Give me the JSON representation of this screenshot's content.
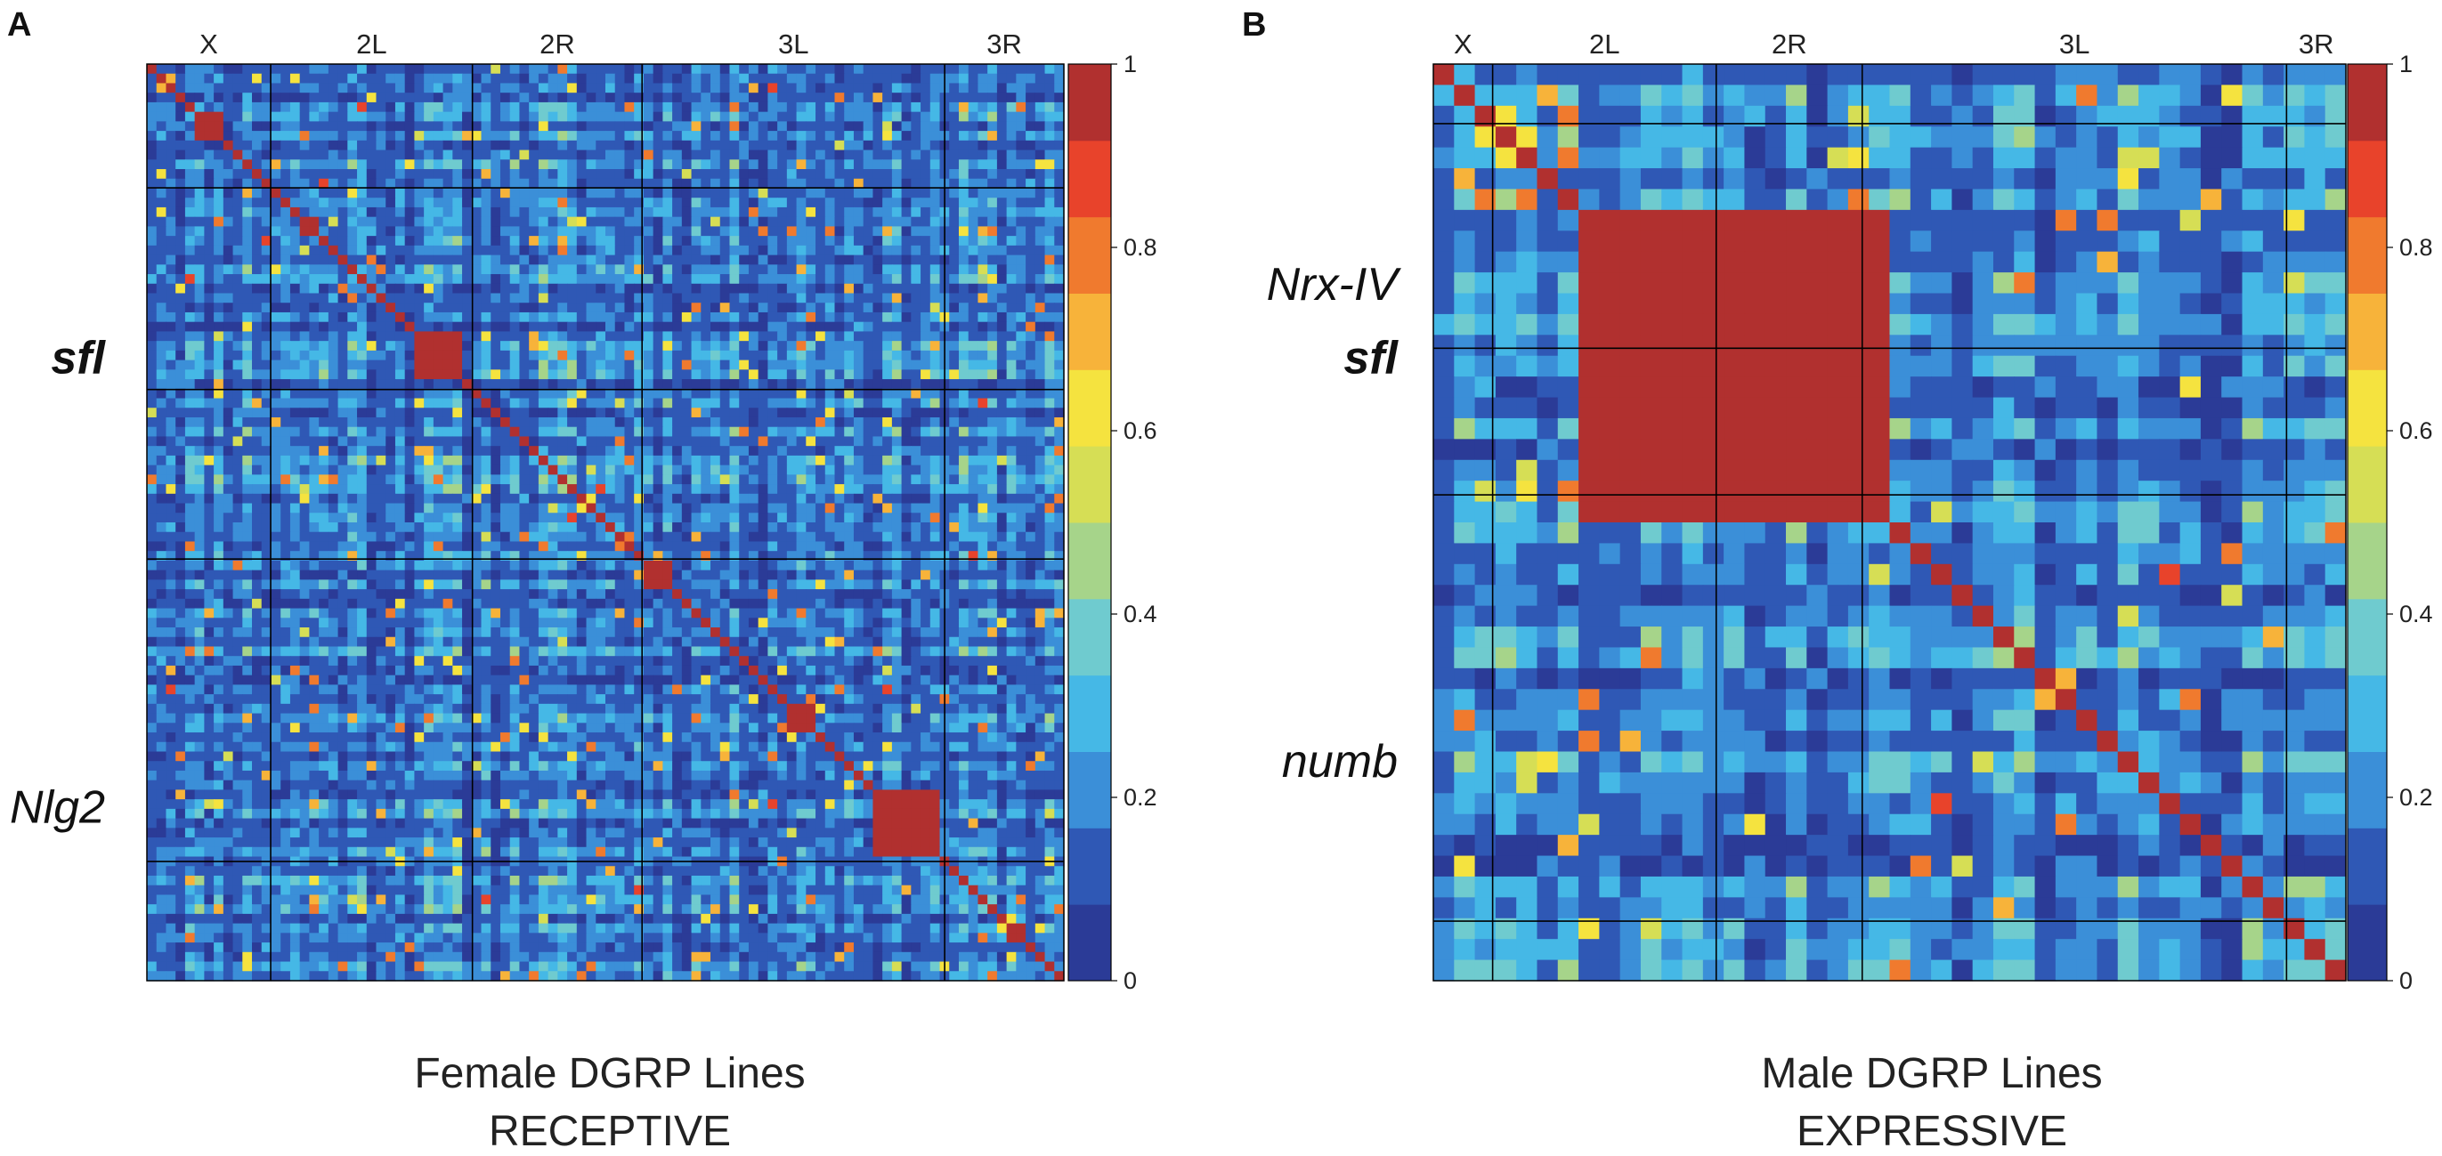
{
  "chart_data": [
    {
      "panel": "A",
      "type": "heatmap",
      "title": "Female DGRP Lines",
      "subtitle": "RECEPTIVE",
      "chromosomes": [
        "X",
        "2L",
        "2R",
        "3L",
        "3R"
      ],
      "chromosome_fractions": [
        0.135,
        0.22,
        0.185,
        0.33,
        0.13
      ],
      "labeled_genes": [
        {
          "label": "sfl",
          "bold": true,
          "position": 0.32
        },
        {
          "label": "Nlg2",
          "bold": false,
          "position": 0.81
        }
      ],
      "grid": 96,
      "diagonal_blocks": [
        {
          "start": 0.06,
          "size": 0.03
        },
        {
          "start": 0.17,
          "size": 0.022
        },
        {
          "start": 0.3,
          "size": 0.055
        },
        {
          "start": 0.55,
          "size": 0.032
        },
        {
          "start": 0.7,
          "size": 0.03
        },
        {
          "start": 0.8,
          "size": 0.07
        },
        {
          "start": 0.94,
          "size": 0.022
        }
      ],
      "colorbar": {
        "min": 0,
        "max": 1,
        "ticks": [
          0,
          0.2,
          0.4,
          0.6,
          0.8,
          1
        ],
        "tick_labels": [
          "0",
          "0.2",
          "0.4",
          "0.6",
          "0.8",
          "1"
        ]
      },
      "colormap": [
        "#2b3b97",
        "#2f58b5",
        "#3b8fd8",
        "#45b8e6",
        "#6fcbcf",
        "#a6d48a",
        "#d6de55",
        "#f5e33f",
        "#f7b33a",
        "#f07a2e",
        "#e8432b",
        "#b1302f"
      ]
    },
    {
      "panel": "B",
      "type": "heatmap",
      "title": "Male DGRP Lines",
      "subtitle": "EXPRESSIVE",
      "chromosomes": [
        "X",
        "2L",
        "2R",
        "3L",
        "3R"
      ],
      "chromosome_fractions": [
        0.065,
        0.245,
        0.16,
        0.465,
        0.065
      ],
      "labeled_genes": [
        {
          "label": "Nrx-IV",
          "bold": false,
          "position": 0.24
        },
        {
          "label": "sfl",
          "bold": true,
          "position": 0.32
        },
        {
          "label": "numb",
          "bold": false,
          "position": 0.76
        }
      ],
      "grid": 44,
      "big_block": {
        "start": 0.16,
        "end": 0.5
      },
      "colorbar": {
        "min": 0,
        "max": 1,
        "ticks": [
          0,
          0.2,
          0.4,
          0.6,
          0.8,
          1
        ],
        "tick_labels": [
          "0",
          "0.2",
          "0.4",
          "0.6",
          "0.8",
          "1"
        ]
      },
      "colormap": [
        "#2b3b97",
        "#2f58b5",
        "#3b8fd8",
        "#45b8e6",
        "#6fcbcf",
        "#a6d48a",
        "#d6de55",
        "#f5e33f",
        "#f7b33a",
        "#f07a2e",
        "#e8432b",
        "#b1302f"
      ]
    }
  ]
}
